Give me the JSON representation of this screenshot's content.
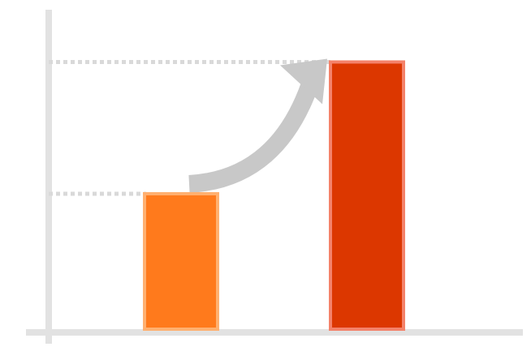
{
  "chart_data": {
    "type": "bar",
    "categories": [
      "",
      ""
    ],
    "values": [
      1,
      1.95
    ],
    "ylim": [
      0,
      2.28
    ],
    "grid": false,
    "reference_lines": [
      1,
      1.95
    ],
    "annotations": [
      {
        "kind": "arrow",
        "meaning": "increase",
        "from_category": 0,
        "to_category": 1
      }
    ],
    "colors": {
      "bars": [
        "#ff7a1c",
        "#dc3700"
      ],
      "bar_outline": [
        "#ffb070",
        "#f4826a"
      ],
      "axis": "#e2e2e2",
      "reference_line": "#d9d9d9",
      "arrow": "#c8c8c8"
    }
  }
}
